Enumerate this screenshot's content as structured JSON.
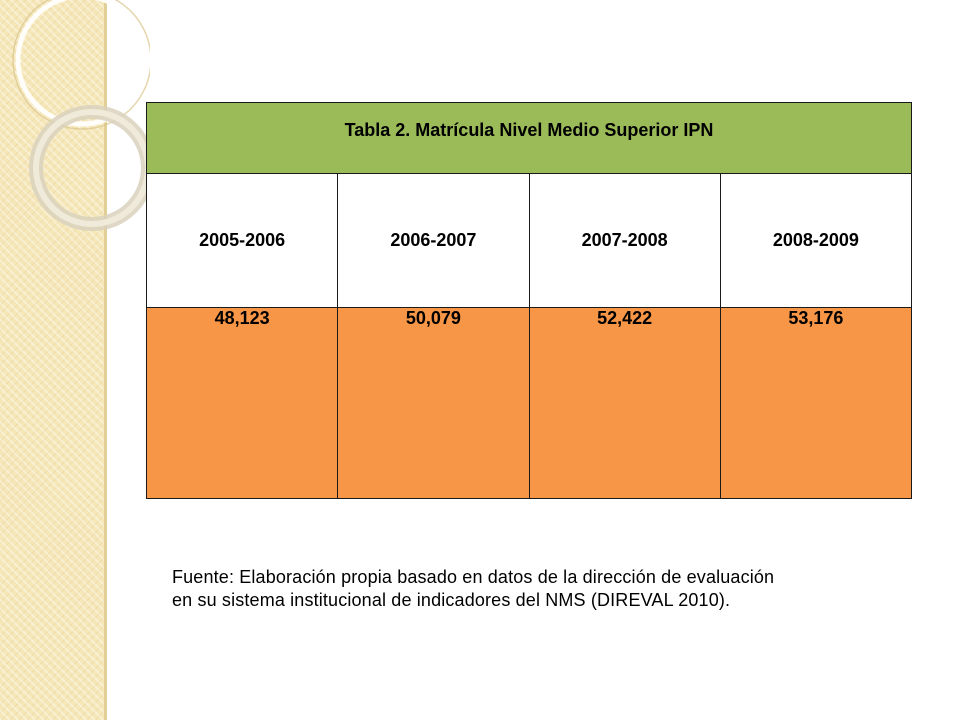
{
  "table": {
    "title": "Tabla 2.  Matrícula Nivel Medio Superior IPN",
    "columns": [
      "2005-2006",
      "2006-2007",
      "2007-2008",
      "2008-2009"
    ],
    "values": [
      "48,123",
      "50,079",
      "52,422",
      "53,176"
    ]
  },
  "source": {
    "line1": "Fuente: Elaboración propia basado en datos de la dirección de evaluación",
    "line2": "en su sistema institucional de indicadores del NMS (DIREVAL 2010)."
  },
  "colors": {
    "title_bg": "#9bbb59",
    "value_bg": "#f79646",
    "strip_bg": "#f6e7b9"
  }
}
